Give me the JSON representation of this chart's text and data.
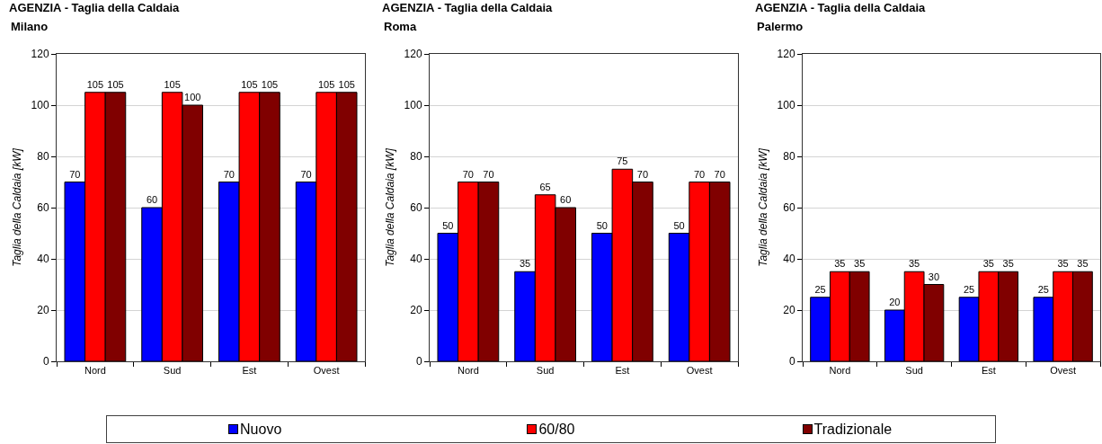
{
  "chart_data": [
    {
      "type": "bar",
      "title": "AGENZIA - Taglia della Caldaia",
      "subtitle": "Milano",
      "ylabel": "Taglia della Caldaia [kW]",
      "categories": [
        "Nord",
        "Sud",
        "Est",
        "Ovest"
      ],
      "series": [
        {
          "name": "Nuovo",
          "color": "#0000ff",
          "values": [
            70,
            60,
            70,
            70
          ]
        },
        {
          "name": "60/80",
          "color": "#ff0000",
          "values": [
            105,
            105,
            105,
            105
          ]
        },
        {
          "name": "Tradizionale",
          "color": "#800000",
          "values": [
            105,
            100,
            105,
            105
          ]
        }
      ],
      "ylim": [
        0,
        120
      ],
      "yticks": [
        0,
        20,
        40,
        60,
        80,
        100,
        120
      ],
      "grid": "y",
      "legend": "bottom",
      "data_labels": true
    },
    {
      "type": "bar",
      "title": "AGENZIA - Taglia della Caldaia",
      "subtitle": "Roma",
      "ylabel": "Taglia della Caldaia [kW]",
      "categories": [
        "Nord",
        "Sud",
        "Est",
        "Ovest"
      ],
      "series": [
        {
          "name": "Nuovo",
          "color": "#0000ff",
          "values": [
            50,
            35,
            50,
            50
          ]
        },
        {
          "name": "60/80",
          "color": "#ff0000",
          "values": [
            70,
            65,
            75,
            70
          ]
        },
        {
          "name": "Tradizionale",
          "color": "#800000",
          "values": [
            70,
            60,
            70,
            70
          ]
        }
      ],
      "ylim": [
        0,
        120
      ],
      "yticks": [
        0,
        20,
        40,
        60,
        80,
        100,
        120
      ],
      "grid": "y",
      "legend": "bottom",
      "data_labels": true
    },
    {
      "type": "bar",
      "title": "AGENZIA - Taglia della Caldaia",
      "subtitle": "Palermo",
      "ylabel": "Taglia della Caldaia [kW]",
      "categories": [
        "Nord",
        "Sud",
        "Est",
        "Ovest"
      ],
      "series": [
        {
          "name": "Nuovo",
          "color": "#0000ff",
          "values": [
            25,
            20,
            25,
            25
          ]
        },
        {
          "name": "60/80",
          "color": "#ff0000",
          "values": [
            35,
            35,
            35,
            35
          ]
        },
        {
          "name": "Tradizionale",
          "color": "#800000",
          "values": [
            35,
            30,
            35,
            35
          ]
        }
      ],
      "ylim": [
        0,
        120
      ],
      "yticks": [
        0,
        20,
        40,
        60,
        80,
        100,
        120
      ],
      "grid": "y",
      "legend": "bottom",
      "data_labels": true
    }
  ]
}
